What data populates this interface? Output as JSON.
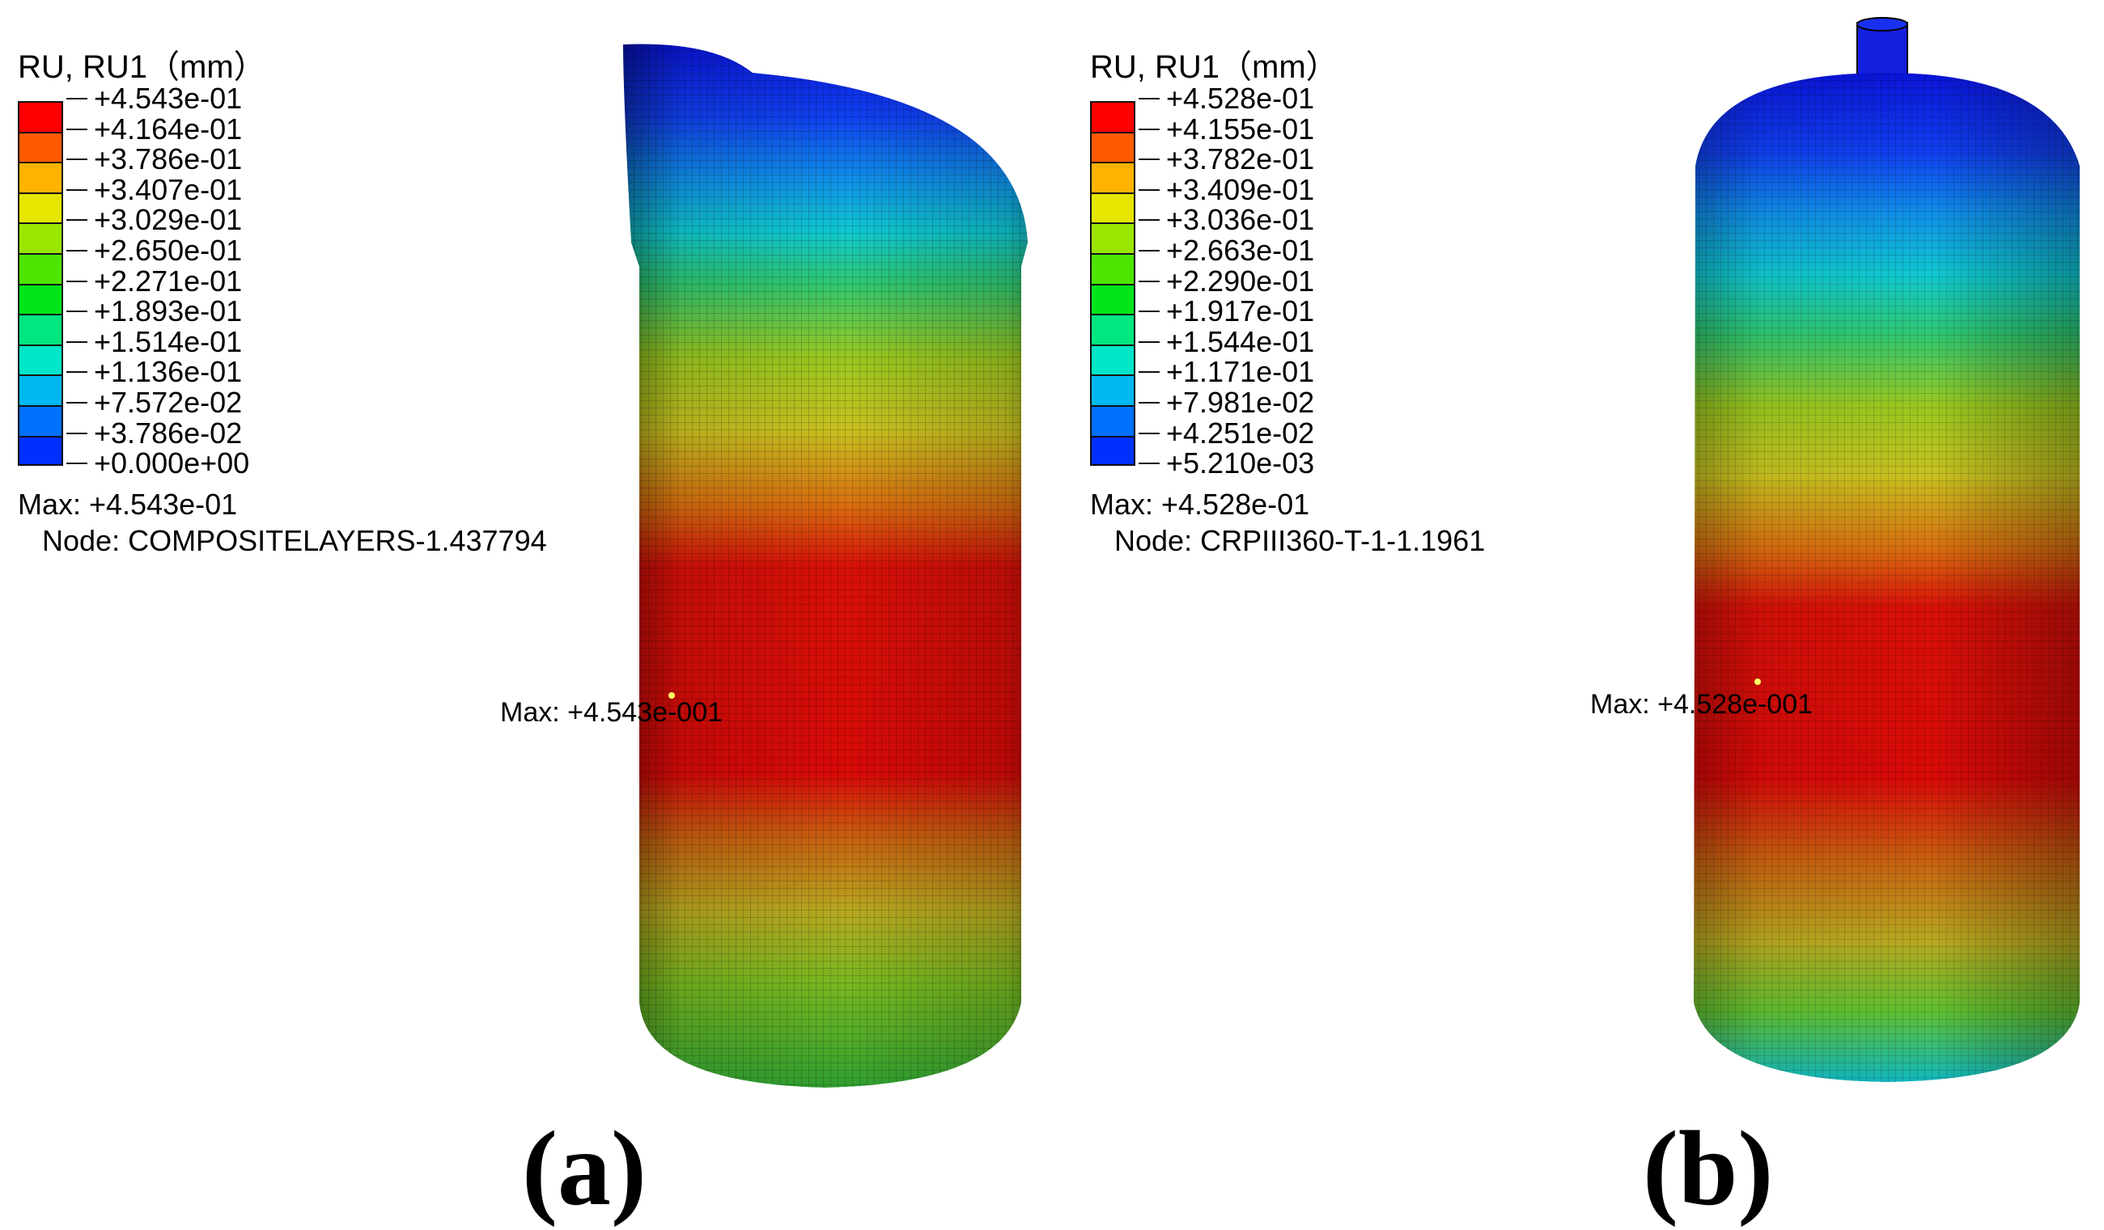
{
  "panels": [
    {
      "id": "a",
      "caption": "(a)",
      "legend": {
        "title": "RU, RU1（mm）",
        "labels": [
          "+4.543e-01",
          "+4.164e-01",
          "+3.786e-01",
          "+3.407e-01",
          "+3.029e-01",
          "+2.650e-01",
          "+2.271e-01",
          "+1.893e-01",
          "+1.514e-01",
          "+1.136e-01",
          "+7.572e-02",
          "+3.786e-02",
          "+0.000e+00"
        ],
        "colors": [
          "#ff0000",
          "#ff5a00",
          "#ffb300",
          "#e6e600",
          "#9be600",
          "#4ee600",
          "#00e61a",
          "#00e680",
          "#00e6c8",
          "#00b8f0",
          "#0070ff",
          "#0030ff"
        ]
      },
      "max_line": "Max: +4.543e-01",
      "node_line": "Node: COMPOSITELAYERS-1.437794",
      "marker_label": "Max: +4.543e-001"
    },
    {
      "id": "b",
      "caption": "(b)",
      "legend": {
        "title": "RU, RU1（mm）",
        "labels": [
          "+4.528e-01",
          "+4.155e-01",
          "+3.782e-01",
          "+3.409e-01",
          "+3.036e-01",
          "+2.663e-01",
          "+2.290e-01",
          "+1.917e-01",
          "+1.544e-01",
          "+1.171e-01",
          "+7.981e-02",
          "+4.251e-02",
          "+5.210e-03"
        ],
        "colors": [
          "#ff0000",
          "#ff5a00",
          "#ffb300",
          "#e6e600",
          "#9be600",
          "#4ee600",
          "#00e61a",
          "#00e680",
          "#00e6c8",
          "#00b8f0",
          "#0070ff",
          "#0030ff"
        ]
      },
      "max_line": "Max: +4.528e-01",
      "node_line": "Node: CRPIII360-T-1-1.1961",
      "marker_label": "Max: +4.528e-001"
    }
  ]
}
